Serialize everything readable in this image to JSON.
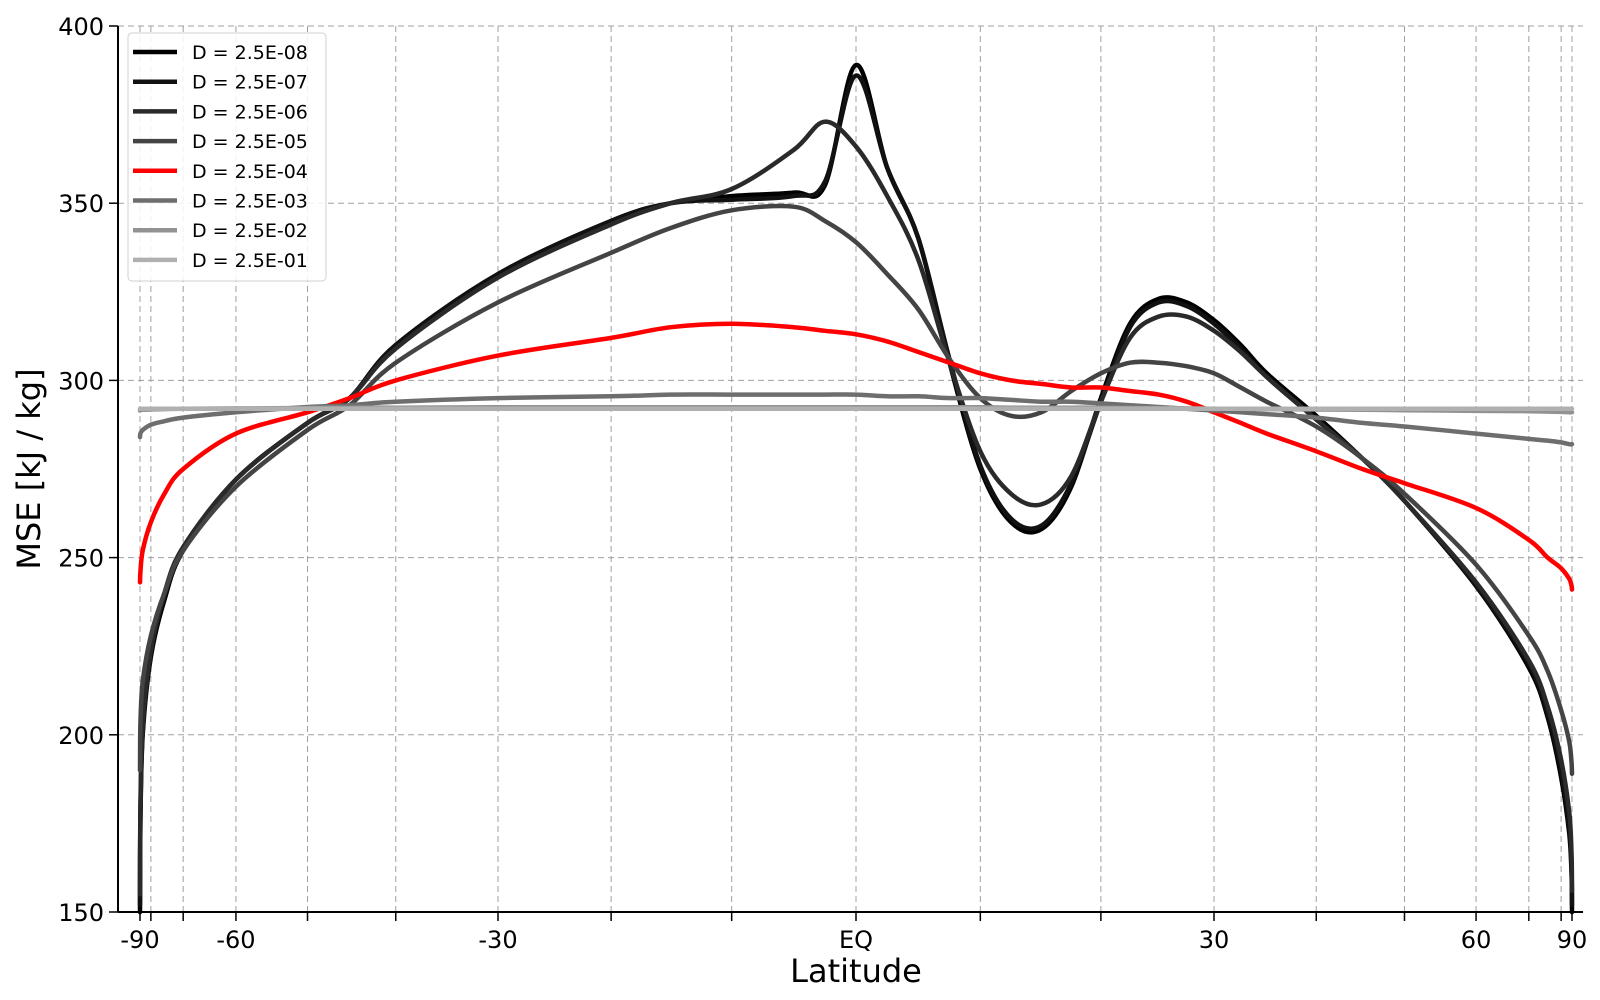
{
  "chart_data": {
    "type": "line",
    "title": "",
    "xlabel": "Latitude",
    "ylabel": "MSE [kJ / kg]",
    "xlim": [
      -90,
      90
    ],
    "ylim": [
      150,
      400
    ],
    "x_scale": "sine",
    "x_ticks": [
      {
        "value": -90,
        "label": "-90"
      },
      {
        "value": -60,
        "label": "-60"
      },
      {
        "value": -30,
        "label": "-30"
      },
      {
        "value": 0,
        "label": "EQ"
      },
      {
        "value": 30,
        "label": "30"
      },
      {
        "value": 60,
        "label": "60"
      },
      {
        "value": 90,
        "label": "90"
      }
    ],
    "x_minor_ticks": [
      -80,
      -70,
      -50,
      -40,
      -20,
      -10,
      10,
      20,
      40,
      50,
      70,
      80
    ],
    "y_ticks": [
      150,
      200,
      250,
      300,
      350,
      400
    ],
    "grid": true,
    "legend_position": "top-left",
    "x": [
      -89.5,
      -88,
      -85,
      -80,
      -75,
      -70,
      -60,
      -50,
      -45,
      -40,
      -30,
      -20,
      -15,
      -10,
      -5,
      -2.5,
      0,
      2.5,
      5,
      7.5,
      10,
      12.5,
      15,
      17.5,
      20,
      22.5,
      25,
      27.5,
      30,
      32.5,
      35,
      40,
      45,
      50,
      60,
      70,
      75,
      80,
      85,
      88,
      89.5
    ],
    "series": [
      {
        "name": "D = 2.5E-08",
        "color": "#000000",
        "values": [
          150,
          175,
          200,
          222,
          238,
          252,
          272,
          288,
          295,
          310,
          330,
          345,
          350,
          352,
          353,
          355,
          389,
          360,
          340,
          305,
          275,
          260,
          258,
          270,
          295,
          316,
          323,
          322,
          317,
          310,
          302,
          290,
          278,
          266,
          242,
          219,
          205,
          188,
          172,
          160,
          150
        ]
      },
      {
        "name": "D = 2.5E-07",
        "color": "#111111",
        "values": [
          152,
          177,
          201,
          223,
          239,
          252,
          272,
          288,
          295,
          310,
          330,
          345,
          350,
          351,
          352,
          356,
          386,
          360,
          340,
          306,
          276,
          261,
          259,
          271,
          294,
          315,
          322,
          321,
          316,
          309,
          301,
          289,
          278,
          266,
          242,
          220,
          206,
          190,
          174,
          162,
          152
        ]
      },
      {
        "name": "D = 2.5E-06",
        "color": "#2a2a2a",
        "values": [
          155,
          180,
          203,
          224,
          240,
          253,
          272,
          288,
          295,
          309,
          329,
          344,
          350,
          354,
          365,
          373,
          366,
          352,
          334,
          305,
          280,
          268,
          265,
          273,
          294,
          312,
          318,
          318,
          314,
          308,
          301,
          289,
          278,
          266,
          243,
          221,
          208,
          193,
          178,
          166,
          156
        ]
      },
      {
        "name": "D = 2.5E-05",
        "color": "#444444",
        "values": [
          190,
          203,
          215,
          228,
          240,
          252,
          270,
          286,
          293,
          305,
          322,
          336,
          343,
          348,
          349,
          345,
          339,
          330,
          320,
          306,
          295,
          290,
          291,
          297,
          302,
          305,
          305,
          304,
          302,
          298,
          294,
          287,
          278,
          268,
          248,
          228,
          218,
          207,
          198,
          192,
          189
        ]
      },
      {
        "name": "D = 2.5E-04",
        "color": "#ff0000",
        "values": [
          243,
          246,
          252,
          260,
          268,
          275,
          285,
          291,
          295,
          300,
          307,
          312,
          315,
          316,
          315,
          314,
          313,
          311,
          308,
          305,
          302,
          300,
          299,
          298,
          298,
          297,
          296,
          294,
          291,
          288,
          285,
          280,
          275,
          271,
          264,
          255,
          250,
          247,
          244,
          242,
          241
        ]
      },
      {
        "name": "D = 2.5E-03",
        "color": "#6e6e6e",
        "values": [
          284,
          285,
          286,
          287.5,
          288.5,
          289.5,
          291,
          292.5,
          293,
          294,
          295,
          295.5,
          296,
          296,
          296,
          296,
          296,
          295.5,
          295.5,
          295,
          295,
          294.5,
          294,
          294,
          293.5,
          293,
          292.5,
          292,
          291.5,
          291,
          290.5,
          289.5,
          288,
          287,
          285,
          283.5,
          283,
          282.5,
          282,
          282,
          282
        ]
      },
      {
        "name": "D = 2.5E-02",
        "color": "#929292",
        "values": [
          291.5,
          291.6,
          291.7,
          291.8,
          291.9,
          292,
          292.1,
          292.2,
          292.3,
          292.3,
          292.4,
          292.4,
          292.4,
          292.4,
          292.4,
          292.4,
          292.4,
          292.4,
          292.4,
          292.4,
          292.4,
          292.3,
          292.3,
          292.3,
          292.3,
          292.2,
          292.2,
          292.1,
          292,
          292,
          291.9,
          291.8,
          291.7,
          291.6,
          291.4,
          291.3,
          291.2,
          291.1,
          291,
          291,
          291
        ]
      },
      {
        "name": "D = 2.5E-01",
        "color": "#b0b0b0",
        "values": [
          292,
          292,
          292,
          292,
          292,
          292,
          292,
          292,
          292,
          292,
          292,
          292,
          292,
          292,
          292,
          292,
          292,
          292,
          292,
          292,
          292,
          292,
          292,
          292,
          292,
          292,
          292,
          292,
          292,
          292,
          292,
          292,
          292,
          292,
          292,
          292,
          292,
          292,
          292,
          292,
          292
        ]
      }
    ]
  }
}
